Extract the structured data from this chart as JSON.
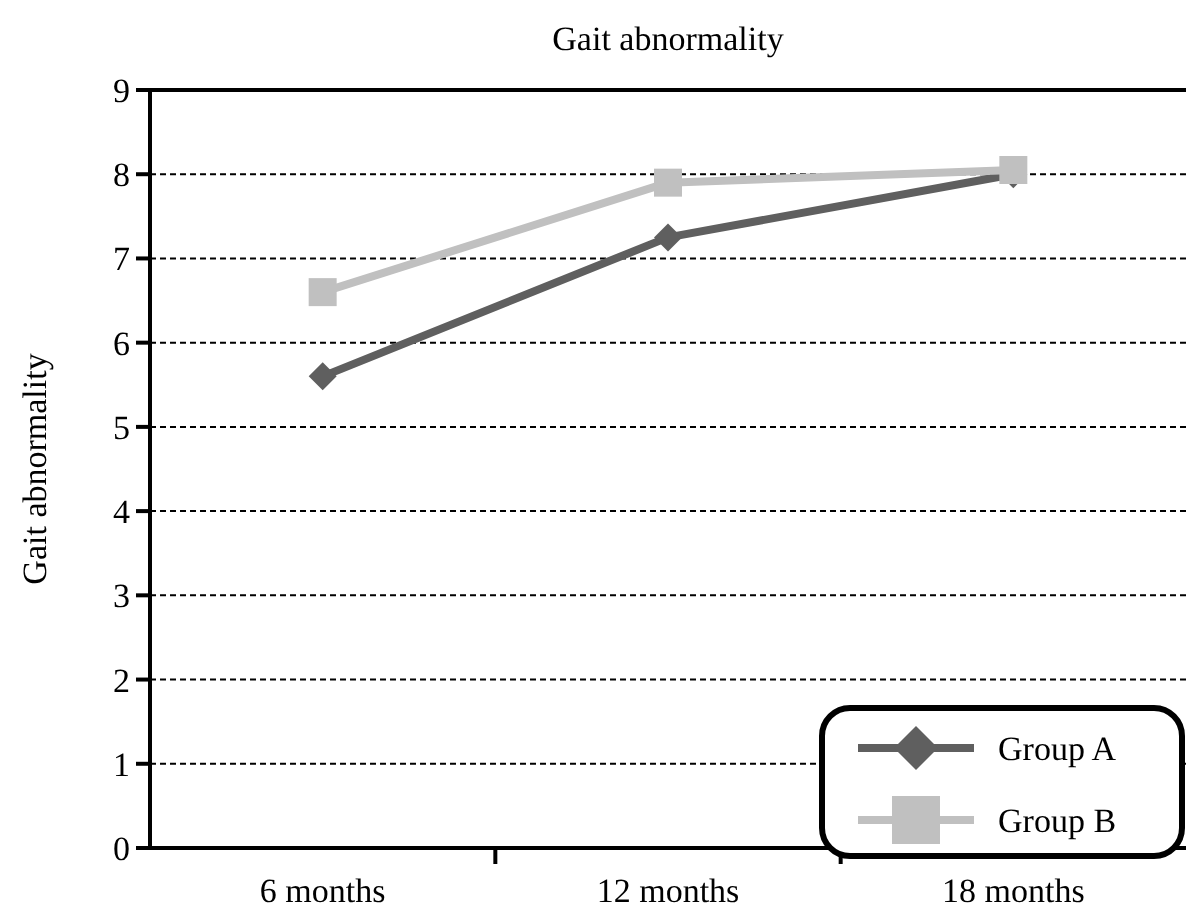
{
  "chart_data": {
    "type": "line",
    "title": "Gait abnormality",
    "ylabel": "Gait abnormality",
    "categories": [
      "6 months",
      "12 months",
      "18 months"
    ],
    "series": [
      {
        "name": "Group A",
        "color": "#5f5f5f",
        "marker": "diamond",
        "values": [
          5.6,
          7.25,
          8.0
        ]
      },
      {
        "name": "Group B",
        "color": "#c0c0c0",
        "marker": "square",
        "values": [
          6.6,
          7.9,
          8.05
        ]
      }
    ],
    "ylim": [
      0,
      9
    ],
    "yticks": [
      0,
      1,
      2,
      3,
      4,
      5,
      6,
      7,
      8,
      9
    ],
    "grid": "y",
    "legend": "bottom right"
  }
}
